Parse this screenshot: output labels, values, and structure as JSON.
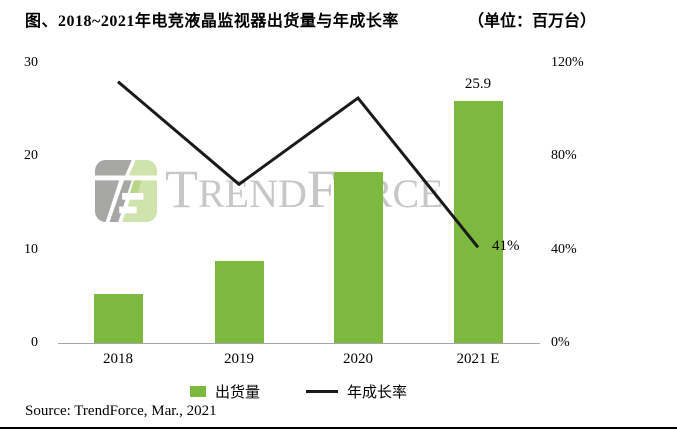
{
  "title": "图、2018~2021年电竞液晶监视器出货量与年成长率",
  "unit_label": "（单位：百万台）",
  "source": "Source: TrendForce, Mar., 2021",
  "watermark": {
    "brand_t": "T",
    "brand_rend": "REND",
    "brand_f": "F",
    "brand_orce": "ORCE"
  },
  "legend": {
    "items": [
      {
        "label": "出货量",
        "swatch": "bar-swatch"
      },
      {
        "label": "年成长率",
        "swatch": "line-swatch"
      }
    ]
  },
  "colors": {
    "bar_green": "#7cb93e",
    "line_black": "#1a1a1a",
    "watermark_gray": "#c5c7c9",
    "logo_gray": "#a7a7a5",
    "logo_green": "#cfe3ad",
    "baseline_gray": "#a6a6a6"
  },
  "chart_data": {
    "type": "bar",
    "subtype": "combo-bar-line",
    "title": "图、2018~2021年电竞液晶监视器出货量与年成长率",
    "unit": "百万台",
    "categories": [
      "2018",
      "2019",
      "2020",
      "2021 E"
    ],
    "series": [
      {
        "name": "出货量",
        "type": "bar",
        "axis": "left",
        "values": [
          5.2,
          8.8,
          18.3,
          25.9
        ],
        "data_labels": {
          "3": "25.9"
        }
      },
      {
        "name": "年成长率",
        "type": "line",
        "axis": "right",
        "values": [
          112,
          68,
          105,
          41
        ],
        "data_labels": {
          "3": "41%"
        }
      }
    ],
    "left_axis": {
      "label": "",
      "ticks": [
        0,
        10,
        20,
        30
      ],
      "range": [
        0,
        30
      ]
    },
    "right_axis": {
      "label": "",
      "ticks": [
        "0%",
        "40%",
        "80%",
        "120%"
      ],
      "range": [
        0,
        120
      ]
    },
    "grid": false,
    "legend_position": "bottom"
  }
}
